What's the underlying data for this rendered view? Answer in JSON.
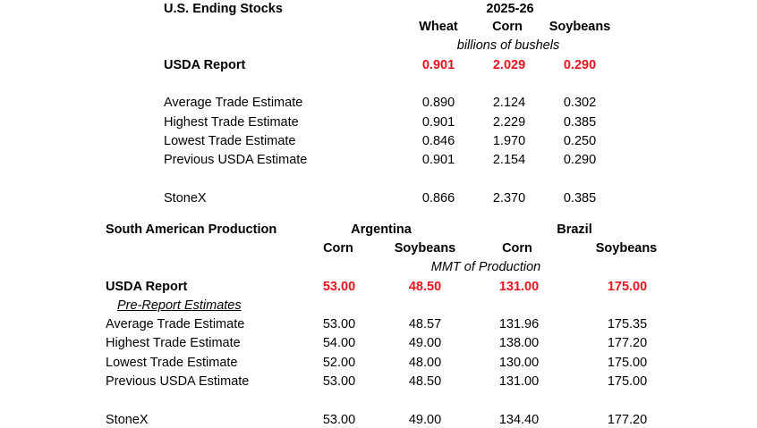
{
  "us_stocks": {
    "title": "U.S. Ending Stocks",
    "year": "2025-26",
    "columns": [
      "Wheat",
      "Corn",
      "Soybeans"
    ],
    "units": "billions of bushels",
    "usda": {
      "label": "USDA Report",
      "values": [
        "0.901",
        "2.029",
        "0.290"
      ]
    },
    "rows": [
      {
        "label": "Average Trade Estimate",
        "values": [
          "0.890",
          "2.124",
          "0.302"
        ]
      },
      {
        "label": "Highest Trade Estimate",
        "values": [
          "0.901",
          "2.229",
          "0.385"
        ]
      },
      {
        "label": "Lowest Trade Estimate",
        "values": [
          "0.846",
          "1.970",
          "0.250"
        ]
      },
      {
        "label": "Previous USDA Estimate",
        "values": [
          "0.901",
          "2.154",
          "0.290"
        ]
      }
    ],
    "stonex": {
      "label": "StoneX",
      "values": [
        "0.866",
        "2.370",
        "0.385"
      ]
    }
  },
  "sa_production": {
    "title": "South American Production",
    "groups": [
      "Argentina",
      "Brazil"
    ],
    "columns": [
      "Corn",
      "Soybeans",
      "Corn",
      "Soybeans"
    ],
    "units": "MMT of Production",
    "usda": {
      "label": "USDA Report",
      "values": [
        "53.00",
        "48.50",
        "131.00",
        "175.00"
      ]
    },
    "subheader": "Pre-Report Estimates",
    "rows": [
      {
        "label": "Average Trade Estimate",
        "values": [
          "53.00",
          "48.57",
          "131.96",
          "175.35"
        ]
      },
      {
        "label": "Highest Trade Estimate",
        "values": [
          "54.00",
          "49.00",
          "138.00",
          "177.20"
        ]
      },
      {
        "label": "Lowest Trade Estimate",
        "values": [
          "52.00",
          "48.00",
          "130.00",
          "175.00"
        ]
      },
      {
        "label": "Previous USDA Estimate",
        "values": [
          "53.00",
          "48.50",
          "131.00",
          "175.00"
        ]
      }
    ],
    "stonex": {
      "label": "StoneX",
      "values": [
        "53.00",
        "49.00",
        "134.40",
        "177.20"
      ]
    }
  },
  "colors": {
    "highlight": "#e8141e"
  }
}
